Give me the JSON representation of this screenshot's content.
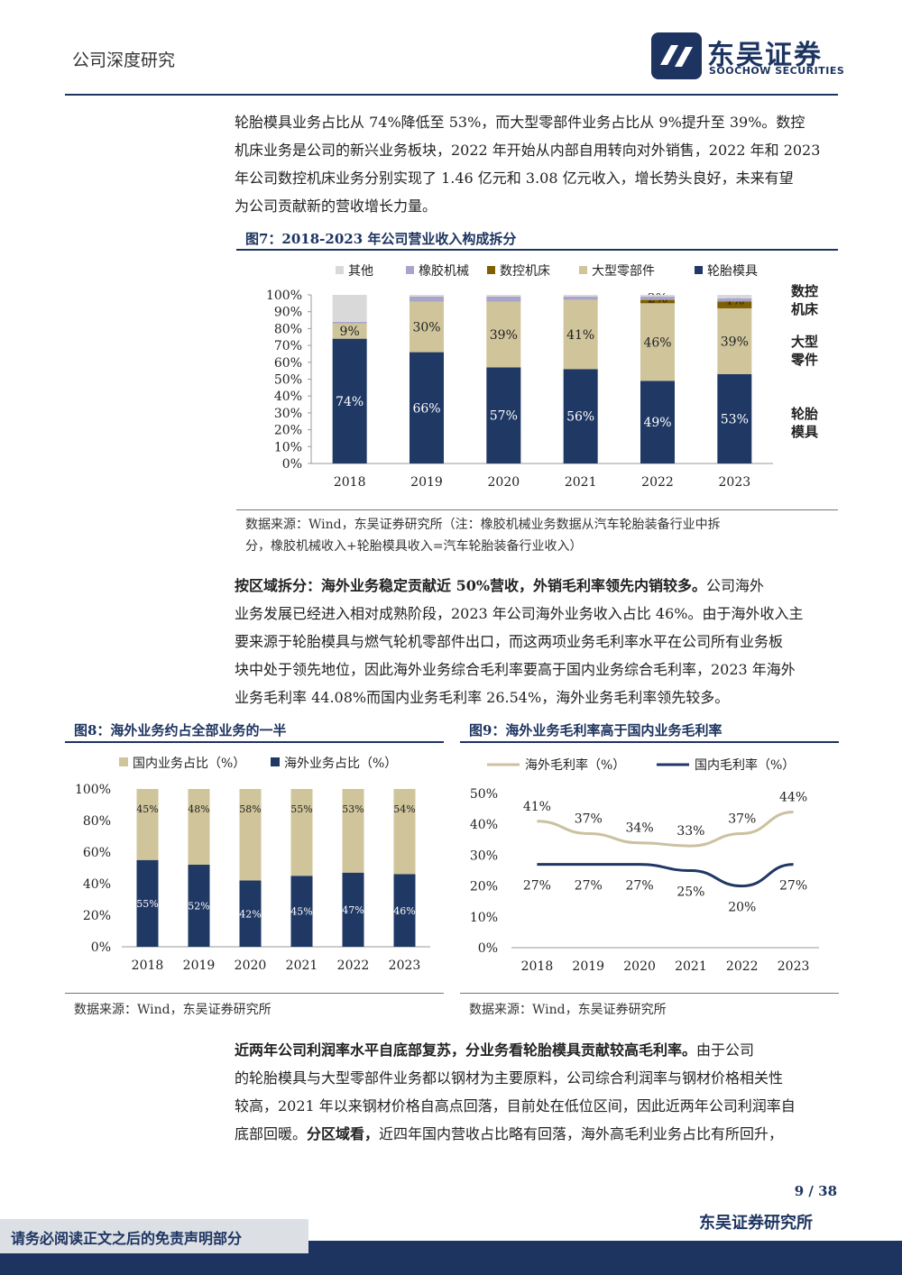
{
  "header": {
    "label": "公司深度研究",
    "logo_cn": "东吴证券",
    "logo_en": "SOOCHOW SECURITIES"
  },
  "para1": {
    "lines": [
      "轮胎模具业务占比从 74%降低至 53%，而大型零部件业务占比从 9%提升至 39%。数控",
      "机床业务是公司的新兴业务板块，2022 年开始从内部自用转向对外销售，2022 年和 2023",
      "年公司数控机床业务分别实现了 1.46 亿元和 3.08 亿元收入，增长势头良好，未来有望",
      "为公司贡献新的营收增长力量。"
    ]
  },
  "fig7": {
    "title": "图7：2018-2023 年公司营业收入构成拆分",
    "source_lines": [
      "数据来源：Wind，东吴证券研究所（注：橡胶机械业务数据从汽车轮胎装备行业中拆",
      "分，橡胶机械收入+轮胎模具收入=汽车轮胎装备行业收入）"
    ],
    "side_labels": [
      {
        "l1": "数控",
        "l2": "机床"
      },
      {
        "l1": "大型",
        "l2": "零件"
      },
      {
        "l1": "轮胎",
        "l2": "模具"
      }
    ]
  },
  "para2": {
    "lead": "按区域拆分：海外业务稳定贡献近 50%营收，外销毛利率领先内销较多。",
    "lines": [
      "公司海外",
      "业务发展已经进入相对成熟阶段，2023 年公司海外业务收入占比 46%。由于海外收入主",
      "要来源于轮胎模具与燃气轮机零部件出口，而这两项业务毛利率水平在公司所有业务板",
      "块中处于领先地位，因此海外业务综合毛利率要高于国内业务综合毛利率，2023 年海外",
      "业务毛利率 44.08%而国内业务毛利率 26.54%，海外业务毛利率领先较多。"
    ]
  },
  "fig8": {
    "title": "图8：海外业务约占全部业务的一半",
    "source": "数据来源：Wind，东吴证券研究所"
  },
  "fig9": {
    "title": "图9：海外业务毛利率高于国内业务毛利率",
    "source": "数据来源：Wind，东吴证券研究所"
  },
  "para3": {
    "lead": "近两年公司利润率水平自底部复苏，分业务看轮胎模具贡献较高毛利率。",
    "lines": [
      "由于公司",
      "的轮胎模具与大型零部件业务都以钢材为主要原料，公司综合利润率与钢材价格相关性",
      "较高，2021 年以来钢材价格自高点回落，目前处在低位区间，因此近两年公司利润率自",
      "底部回暖。",
      "分区域看，",
      "近四年国内营收占比略有回落，海外高毛利业务占比有所回升，"
    ]
  },
  "footer": {
    "page": "9 / 38",
    "dept": "东吴证券研究所",
    "disclaimer": "请务必阅读正文之后的免责声明部分"
  },
  "colors": {
    "navy": "#1f3864",
    "beige": "#cfc49a",
    "brown": "#7f5f00",
    "lavender": "#a9a4cc",
    "gray": "#d9d9d9",
    "overseas_line": "#cbc1a0",
    "domestic_line": "#1f3864"
  },
  "chart_data": [
    {
      "id": "fig7",
      "type": "bar",
      "stacked": true,
      "categories": [
        "2018",
        "2019",
        "2020",
        "2021",
        "2022",
        "2023"
      ],
      "series": [
        {
          "name": "轮胎模具",
          "values": [
            74,
            66,
            57,
            56,
            49,
            53
          ],
          "labels": [
            "74%",
            "66%",
            "57%",
            "56%",
            "49%",
            "53%"
          ]
        },
        {
          "name": "大型零部件",
          "values": [
            9,
            30,
            39,
            41,
            46,
            39
          ],
          "labels": [
            "9%",
            "30%",
            "39%",
            "41%",
            "46%",
            "39%"
          ]
        },
        {
          "name": "数控机床",
          "values": [
            0,
            0,
            0,
            0,
            2,
            4
          ],
          "labels": [
            "",
            "",
            "",
            "",
            "2%",
            "4%"
          ]
        },
        {
          "name": "橡胶机械",
          "values": [
            1,
            3,
            3,
            2,
            2,
            2
          ]
        },
        {
          "name": "其他",
          "values": [
            16,
            1,
            1,
            1,
            1,
            2
          ]
        }
      ],
      "yticks": [
        "0%",
        "10%",
        "20%",
        "30%",
        "40%",
        "50%",
        "60%",
        "70%",
        "80%",
        "90%",
        "100%"
      ],
      "ylim": [
        0,
        100
      ],
      "legend": [
        "其他",
        "橡胶机械",
        "数控机床",
        "大型零部件",
        "轮胎模具"
      ],
      "legend_position": "top"
    },
    {
      "id": "fig8",
      "type": "bar",
      "stacked": true,
      "categories": [
        "2018",
        "2019",
        "2020",
        "2021",
        "2022",
        "2023"
      ],
      "series": [
        {
          "name": "海外业务占比（%）",
          "values": [
            55,
            52,
            42,
            45,
            47,
            46
          ],
          "labels": [
            "55%",
            "52%",
            "42%",
            "45%",
            "47%",
            "46%"
          ]
        },
        {
          "name": "国内业务占比（%）",
          "values": [
            45,
            48,
            58,
            55,
            53,
            54
          ],
          "labels": [
            "45%",
            "48%",
            "58%",
            "55%",
            "53%",
            "54%"
          ]
        }
      ],
      "yticks": [
        "0%",
        "20%",
        "40%",
        "60%",
        "80%",
        "100%"
      ],
      "ylim": [
        0,
        100
      ],
      "legend": [
        "国内业务占比（%）",
        "海外业务占比（%）"
      ],
      "legend_position": "top"
    },
    {
      "id": "fig9",
      "type": "line",
      "categories": [
        "2018",
        "2019",
        "2020",
        "2021",
        "2022",
        "2023"
      ],
      "series": [
        {
          "name": "海外毛利率（%）",
          "values": [
            41,
            37,
            34,
            33,
            37,
            44
          ],
          "labels": [
            "41%",
            "37%",
            "34%",
            "33%",
            "37%",
            "44%"
          ]
        },
        {
          "name": "国内毛利率（%）",
          "values": [
            27,
            27,
            27,
            25,
            20,
            27
          ],
          "labels": [
            "27%",
            "27%",
            "27%",
            "25%",
            "20%",
            "27%"
          ]
        }
      ],
      "yticks": [
        "0%",
        "10%",
        "20%",
        "30%",
        "40%",
        "50%"
      ],
      "ylim": [
        0,
        50
      ],
      "legend": [
        "海外毛利率（%）",
        "国内毛利率（%）"
      ],
      "legend_position": "top"
    }
  ]
}
